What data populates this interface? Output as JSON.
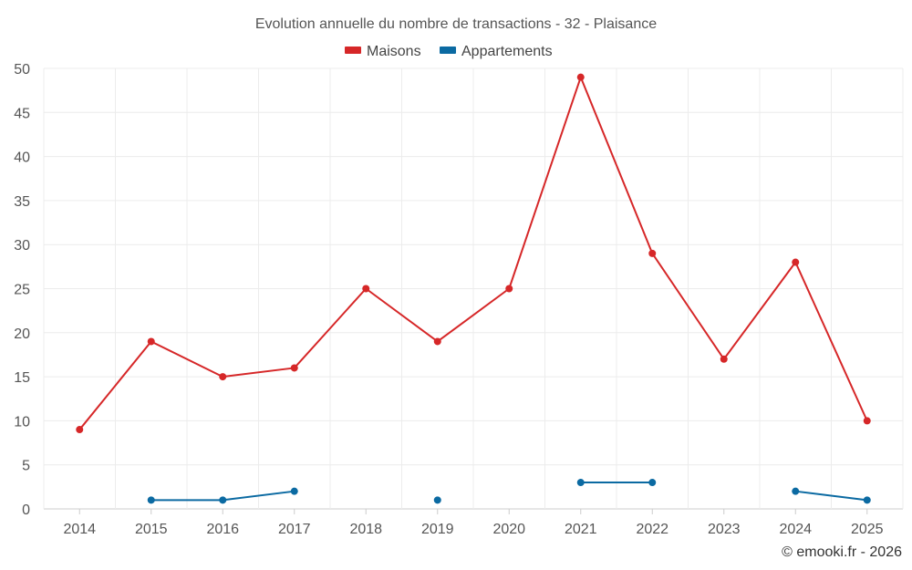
{
  "chart_data": {
    "type": "line",
    "title": "Evolution annuelle du nombre de transactions - 32 - Plaisance",
    "categories": [
      "2014",
      "2015",
      "2016",
      "2017",
      "2018",
      "2019",
      "2020",
      "2021",
      "2022",
      "2023",
      "2024",
      "2025"
    ],
    "yticks": [
      "0",
      "5",
      "10",
      "15",
      "20",
      "25",
      "30",
      "35",
      "40",
      "45",
      "50"
    ],
    "ylim": [
      0,
      50
    ],
    "grid": true,
    "legend_position": "top-center",
    "series": [
      {
        "name": "Maisons",
        "color": "#d62728",
        "values": [
          9,
          19,
          15,
          16,
          25,
          19,
          25,
          49,
          29,
          17,
          28,
          10
        ]
      },
      {
        "name": "Appartements",
        "color": "#0b6aa2",
        "values": [
          null,
          1,
          1,
          2,
          null,
          1,
          null,
          3,
          3,
          null,
          2,
          1
        ]
      }
    ]
  },
  "credit": "© emooki.fr - 2026"
}
